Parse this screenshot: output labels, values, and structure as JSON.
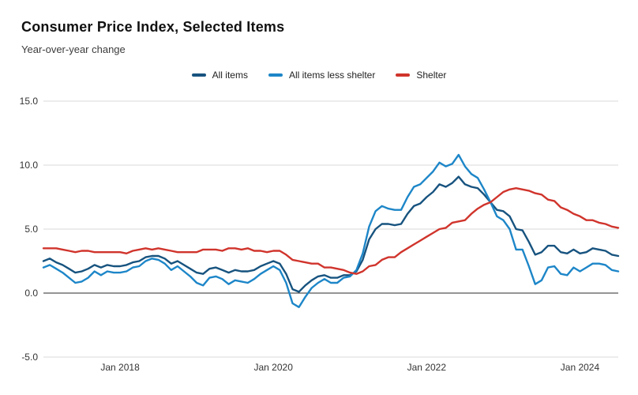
{
  "header": {
    "title": "Consumer Price Index, Selected Items",
    "subtitle": "Year-over-year change"
  },
  "legend": {
    "items": [
      {
        "label": "All items",
        "color": "#17537f"
      },
      {
        "label": "All items less shelter",
        "color": "#1d86c8"
      },
      {
        "label": "Shelter",
        "color": "#d0342c"
      }
    ]
  },
  "colors": {
    "gridline": "#d9d9d9",
    "zeroline": "#2b2b2b",
    "tick_text": "#333333"
  },
  "chart_data": {
    "type": "line",
    "title": "Consumer Price Index, Selected Items",
    "subtitle": "Year-over-year change",
    "x_unit": "month",
    "x_range": [
      "Jan 2017",
      "Jul 2024"
    ],
    "ylim": [
      -5.0,
      15.0
    ],
    "y_ticks": [
      {
        "value": 15,
        "label": "15.0"
      },
      {
        "value": 10,
        "label": "10.0"
      },
      {
        "value": 5,
        "label": "5.0"
      },
      {
        "value": 0,
        "label": "0.0"
      },
      {
        "value": -5,
        "label": "-5.0"
      }
    ],
    "x_ticks": [
      {
        "month_index": 12,
        "label": "Jan 2018"
      },
      {
        "month_index": 36,
        "label": "Jan 2020"
      },
      {
        "month_index": 60,
        "label": "Jan 2022"
      },
      {
        "month_index": 84,
        "label": "Jan 2024"
      }
    ],
    "grid": true,
    "legend_position": "top-center",
    "series": [
      {
        "name": "All items",
        "color": "#17537f",
        "values": [
          2.5,
          2.7,
          2.4,
          2.2,
          1.9,
          1.6,
          1.7,
          1.9,
          2.2,
          2.0,
          2.2,
          2.1,
          2.1,
          2.2,
          2.4,
          2.5,
          2.8,
          2.9,
          2.9,
          2.7,
          2.3,
          2.5,
          2.2,
          1.9,
          1.6,
          1.5,
          1.9,
          2.0,
          1.8,
          1.6,
          1.8,
          1.7,
          1.7,
          1.8,
          2.1,
          2.3,
          2.5,
          2.3,
          1.5,
          0.3,
          0.1,
          0.6,
          1.0,
          1.3,
          1.4,
          1.2,
          1.2,
          1.4,
          1.4,
          1.7,
          2.6,
          4.2,
          5.0,
          5.4,
          5.4,
          5.3,
          5.4,
          6.2,
          6.8,
          7.0,
          7.5,
          7.9,
          8.5,
          8.3,
          8.6,
          9.1,
          8.5,
          8.3,
          8.2,
          7.7,
          7.1,
          6.5,
          6.4,
          6.0,
          5.0,
          4.9,
          4.0,
          3.0,
          3.2,
          3.7,
          3.7,
          3.2,
          3.1,
          3.4,
          3.1,
          3.2,
          3.5,
          3.4,
          3.3,
          3.0,
          2.9
        ]
      },
      {
        "name": "All items less shelter",
        "color": "#1d86c8",
        "values": [
          2.0,
          2.2,
          1.9,
          1.6,
          1.2,
          0.8,
          0.9,
          1.2,
          1.7,
          1.4,
          1.7,
          1.6,
          1.6,
          1.7,
          2.0,
          2.1,
          2.5,
          2.7,
          2.6,
          2.3,
          1.8,
          2.1,
          1.7,
          1.3,
          0.8,
          0.6,
          1.2,
          1.3,
          1.1,
          0.7,
          1.0,
          0.9,
          0.8,
          1.1,
          1.5,
          1.8,
          2.1,
          1.8,
          0.8,
          -0.8,
          -1.1,
          -0.3,
          0.4,
          0.8,
          1.1,
          0.8,
          0.8,
          1.2,
          1.3,
          1.8,
          3.1,
          5.2,
          6.4,
          6.8,
          6.6,
          6.5,
          6.5,
          7.5,
          8.3,
          8.5,
          9.0,
          9.5,
          10.2,
          9.9,
          10.1,
          10.8,
          9.9,
          9.3,
          9.0,
          8.1,
          7.1,
          6.0,
          5.7,
          5.0,
          3.4,
          3.4,
          2.1,
          0.7,
          1.0,
          2.0,
          2.1,
          1.5,
          1.4,
          2.0,
          1.7,
          2.0,
          2.3,
          2.3,
          2.2,
          1.8,
          1.7
        ]
      },
      {
        "name": "Shelter",
        "color": "#d0342c",
        "values": [
          3.5,
          3.5,
          3.5,
          3.4,
          3.3,
          3.2,
          3.3,
          3.3,
          3.2,
          3.2,
          3.2,
          3.2,
          3.2,
          3.1,
          3.3,
          3.4,
          3.5,
          3.4,
          3.5,
          3.4,
          3.3,
          3.2,
          3.2,
          3.2,
          3.2,
          3.4,
          3.4,
          3.4,
          3.3,
          3.5,
          3.5,
          3.4,
          3.5,
          3.3,
          3.3,
          3.2,
          3.3,
          3.3,
          3.0,
          2.6,
          2.5,
          2.4,
          2.3,
          2.3,
          2.0,
          2.0,
          1.9,
          1.8,
          1.6,
          1.5,
          1.7,
          2.1,
          2.2,
          2.6,
          2.8,
          2.8,
          3.2,
          3.5,
          3.8,
          4.1,
          4.4,
          4.7,
          5.0,
          5.1,
          5.5,
          5.6,
          5.7,
          6.2,
          6.6,
          6.9,
          7.1,
          7.5,
          7.9,
          8.1,
          8.2,
          8.1,
          8.0,
          7.8,
          7.7,
          7.3,
          7.2,
          6.7,
          6.5,
          6.2,
          6.0,
          5.7,
          5.7,
          5.5,
          5.4,
          5.2,
          5.1
        ]
      }
    ]
  }
}
